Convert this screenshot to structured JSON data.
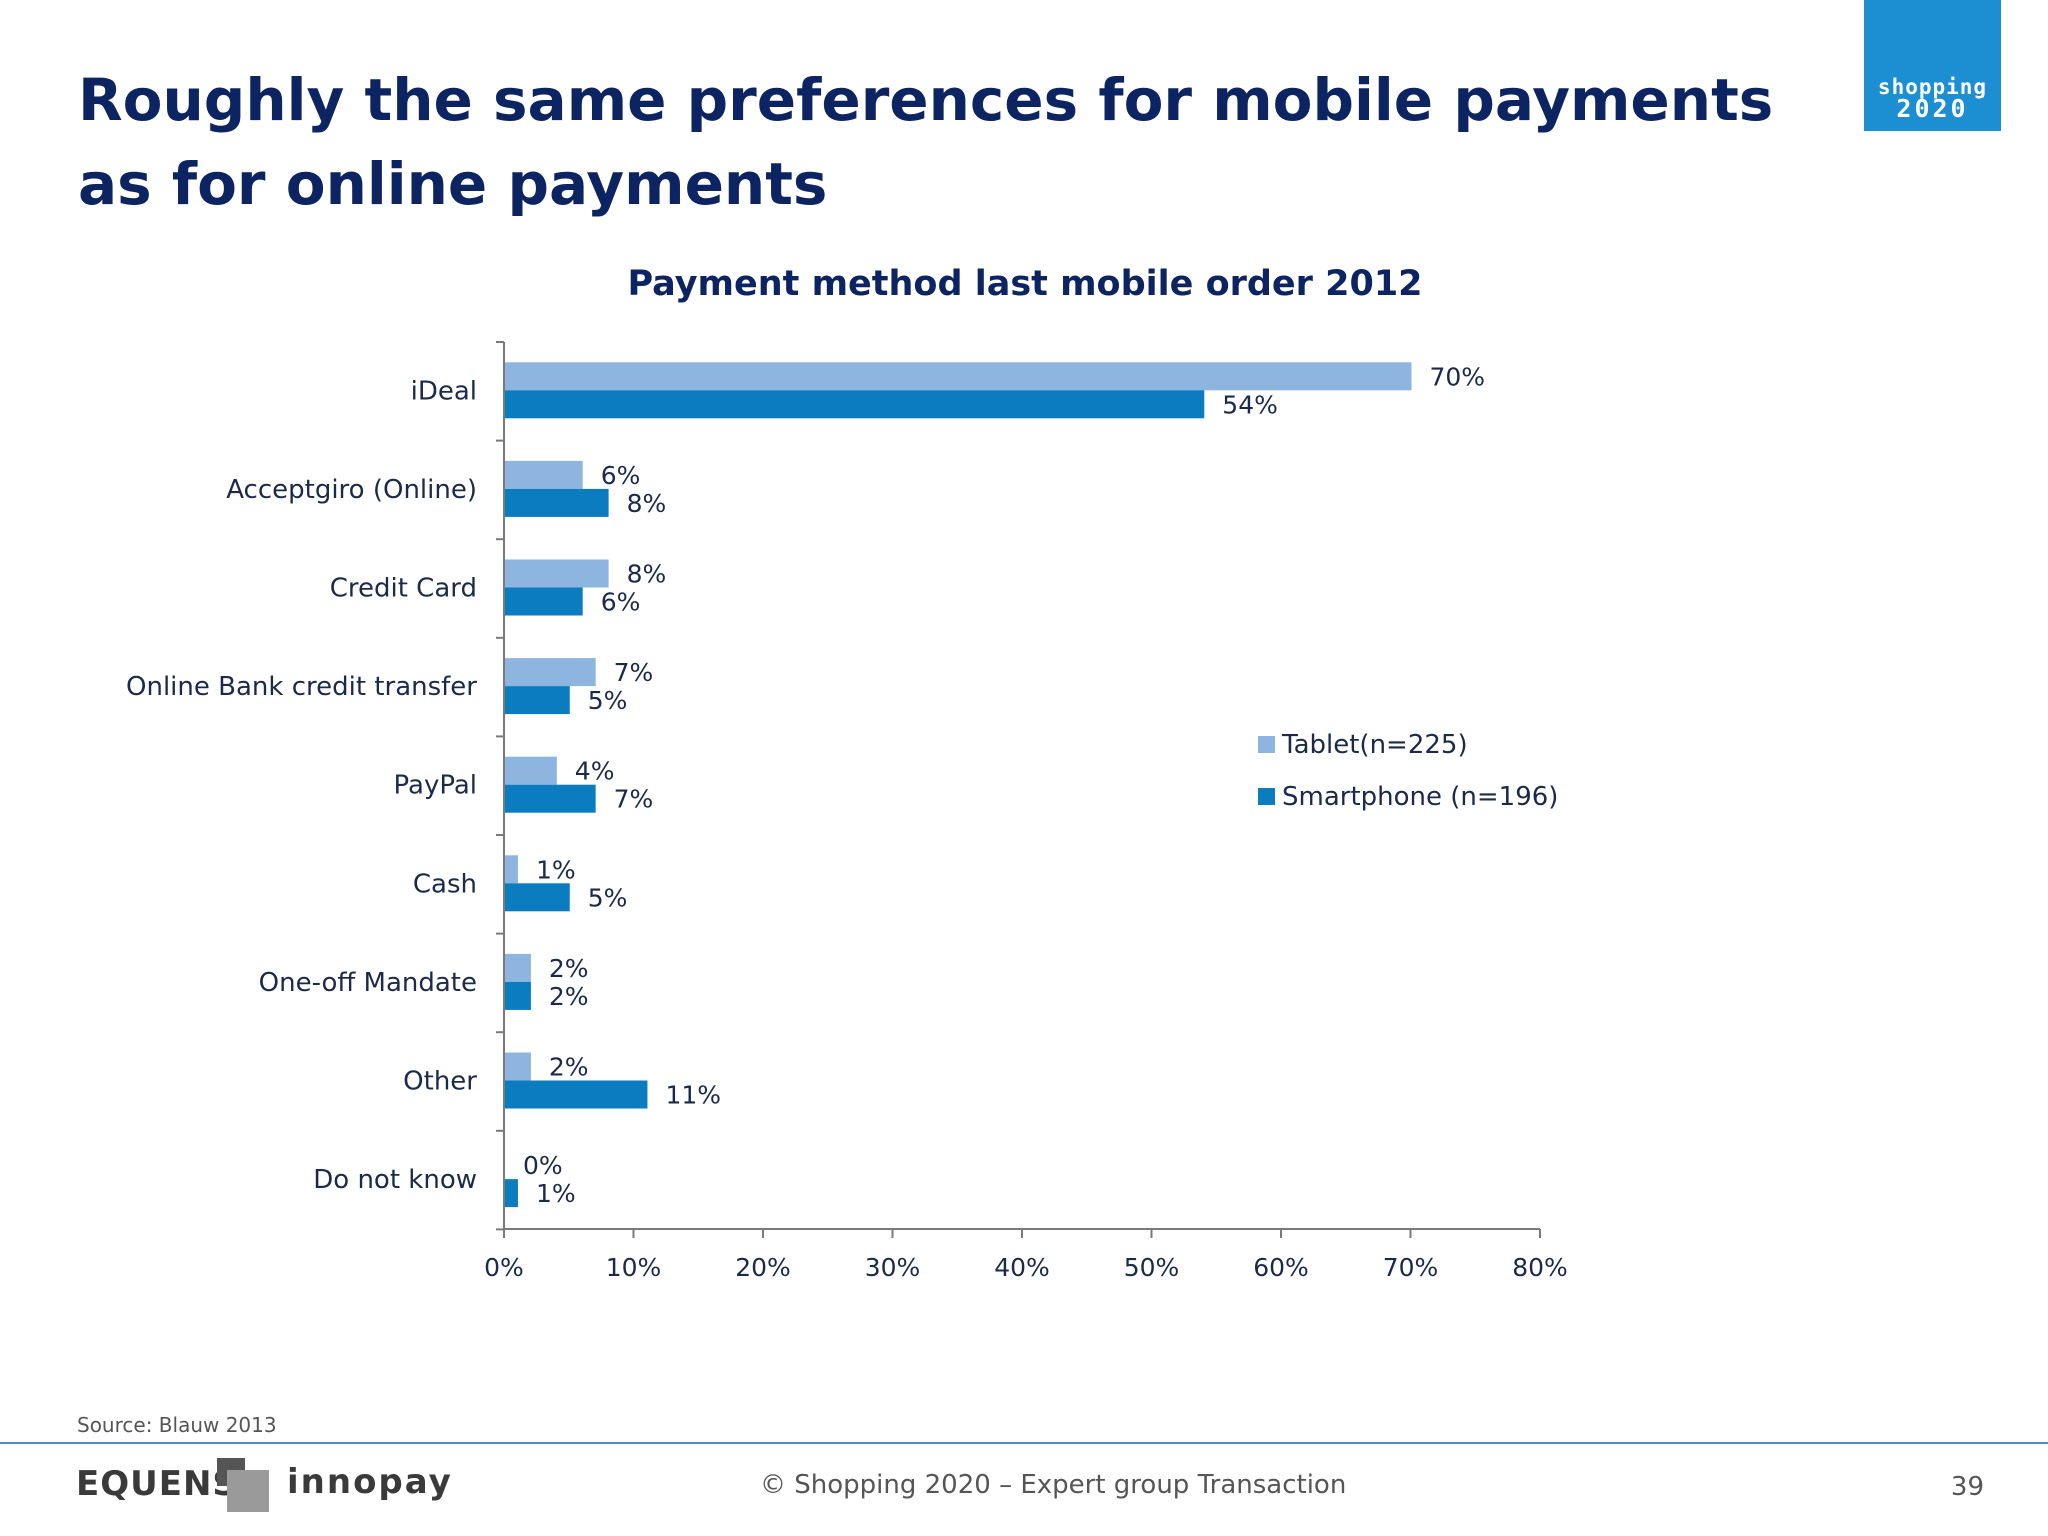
{
  "slide": {
    "title": "Roughly the same preferences for mobile payments as for online payments",
    "logo_line1": "shopping",
    "logo_line2": "2020",
    "source": "Source: Blauw 2013",
    "footer_brand_1": "EQUENS",
    "footer_brand_2": "innopay",
    "copyright": "© Shopping 2020 – Expert group Transaction",
    "page_number": "39"
  },
  "colors": {
    "tablet": "#8eb4e0",
    "smartphone": "#0a7cbf",
    "title": "#0c2461",
    "axis": "#7a7a7a"
  },
  "chart_data": {
    "type": "bar",
    "orientation": "horizontal",
    "title": "Payment method last mobile order 2012",
    "categories": [
      "iDeal",
      "Acceptgiro (Online)",
      "Credit Card",
      "Online Bank credit transfer",
      "PayPal",
      "Cash",
      "One-off Mandate",
      "Other",
      "Do not know"
    ],
    "series": [
      {
        "name": "Tablet(n=225)",
        "values": [
          70,
          6,
          8,
          7,
          4,
          1,
          2,
          2,
          0
        ],
        "labels": [
          "70%",
          "6%",
          "8%",
          "7%",
          "4%",
          "1%",
          "2%",
          "2%",
          "0%"
        ]
      },
      {
        "name": "Smartphone (n=196)",
        "values": [
          54,
          8,
          6,
          5,
          7,
          5,
          2,
          11,
          1
        ],
        "labels": [
          "54%",
          "8%",
          "6%",
          "5%",
          "7%",
          "5%",
          "2%",
          "11%",
          "1%"
        ]
      }
    ],
    "xlim": [
      0,
      80
    ],
    "xticks": [
      0,
      10,
      20,
      30,
      40,
      50,
      60,
      70,
      80
    ],
    "xtick_labels": [
      "0%",
      "10%",
      "20%",
      "30%",
      "40%",
      "50%",
      "60%",
      "70%",
      "80%"
    ],
    "grid": false,
    "legend_position": "right"
  }
}
